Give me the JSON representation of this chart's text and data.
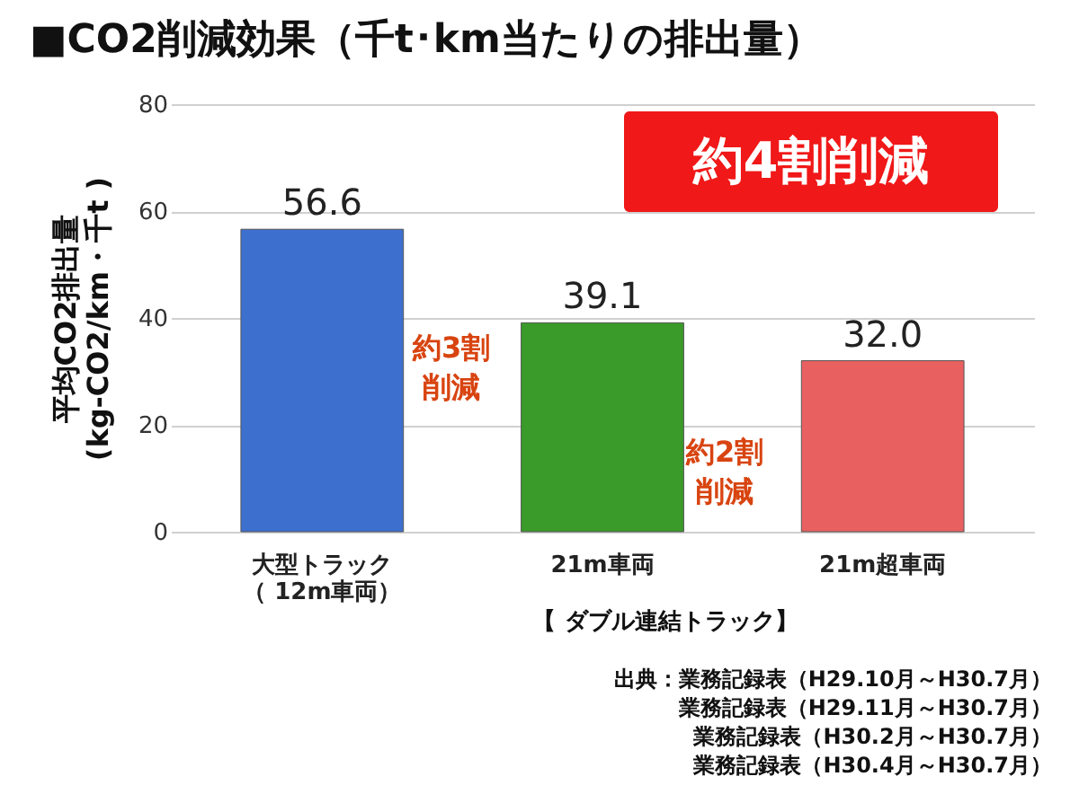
{
  "chart_data": {
    "type": "bar",
    "title": "■CO2削減効果（千t･km当たりの排出量）",
    "ylabel": "平均CO2排出量\n(kg-CO2/km・千t )",
    "categories": [
      "大型トラック（ 12m車両）",
      "21m車両",
      "21m超車両"
    ],
    "values": [
      56.6,
      39.1,
      32.0
    ],
    "colors": [
      "#3d6fcf",
      "#3a9a2a",
      "#e86060"
    ],
    "value_labels": [
      "56.6",
      "39.1",
      "32.0"
    ],
    "ylim": [
      0,
      80
    ],
    "yticks": [
      0,
      20,
      40,
      60,
      80
    ],
    "grid": "y",
    "annotations": [
      "約4割削減",
      "約3割削減",
      "約2割削減",
      "【 ダブル連結トラック】",
      "出典：業務記録表（H29.10月～H30.7月）",
      "業務記録表（H29.11月～H30.7月）",
      "業務記録表（H30.2月～H30.7月）",
      "業務記録表（H30.4月～H30.7月）"
    ]
  }
}
